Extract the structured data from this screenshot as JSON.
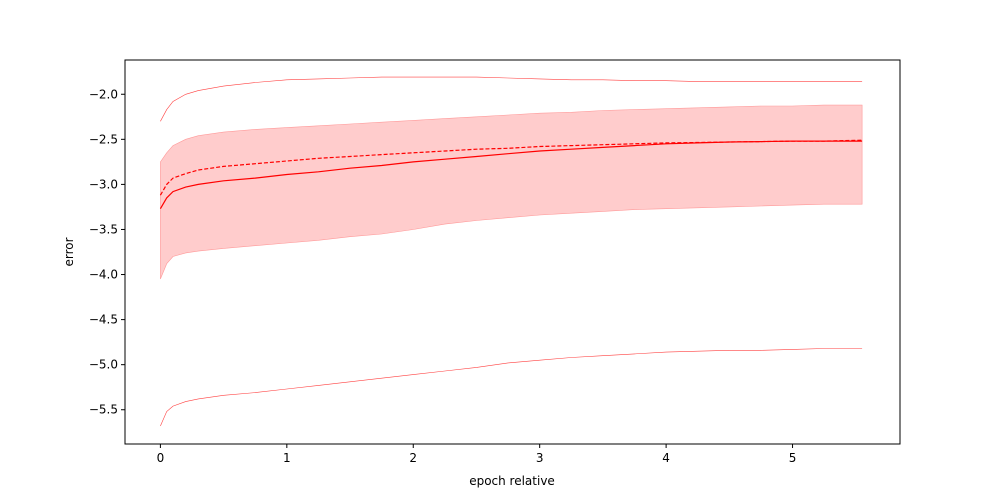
{
  "chart_data": {
    "type": "line",
    "title": "",
    "xlabel": "epoch relative",
    "ylabel": "error",
    "xlim": [
      -0.28,
      5.85
    ],
    "ylim": [
      -5.88,
      -1.62
    ],
    "xticks": [
      0,
      1,
      2,
      3,
      4,
      5
    ],
    "xtick_labels": [
      "0",
      "1",
      "2",
      "3",
      "4",
      "5"
    ],
    "yticks": [
      -2.0,
      -2.5,
      -3.0,
      -3.5,
      -4.0,
      -4.5,
      -5.0,
      -5.5
    ],
    "ytick_labels": [
      "−2.0",
      "−2.5",
      "−3.0",
      "−3.5",
      "−4.0",
      "−4.5",
      "−5.0",
      "−5.5"
    ],
    "grid": false,
    "color": "#ff0000",
    "band_fill": "#ffcccc",
    "series": [
      {
        "role": "mean",
        "style": "solid",
        "x": [
          0,
          0.05,
          0.1,
          0.2,
          0.3,
          0.5,
          0.75,
          1.0,
          1.25,
          1.5,
          1.75,
          2.0,
          2.25,
          2.5,
          2.75,
          3.0,
          3.25,
          3.5,
          3.75,
          4.0,
          4.25,
          4.5,
          4.75,
          5.0,
          5.25,
          5.55
        ],
        "y": [
          -3.27,
          -3.15,
          -3.08,
          -3.03,
          -3.0,
          -2.96,
          -2.93,
          -2.89,
          -2.86,
          -2.82,
          -2.79,
          -2.75,
          -2.72,
          -2.69,
          -2.66,
          -2.63,
          -2.61,
          -2.59,
          -2.57,
          -2.55,
          -2.54,
          -2.53,
          -2.525,
          -2.52,
          -2.52,
          -2.52
        ]
      },
      {
        "role": "median",
        "style": "dashed",
        "x": [
          0,
          0.05,
          0.1,
          0.2,
          0.3,
          0.5,
          0.75,
          1.0,
          1.25,
          1.5,
          1.75,
          2.0,
          2.25,
          2.5,
          2.75,
          3.0,
          3.25,
          3.5,
          3.75,
          4.0,
          4.25,
          4.5,
          4.75,
          5.0,
          5.25,
          5.55
        ],
        "y": [
          -3.12,
          -3.0,
          -2.93,
          -2.88,
          -2.84,
          -2.8,
          -2.77,
          -2.74,
          -2.71,
          -2.69,
          -2.67,
          -2.65,
          -2.63,
          -2.61,
          -2.6,
          -2.58,
          -2.57,
          -2.56,
          -2.55,
          -2.54,
          -2.535,
          -2.53,
          -2.525,
          -2.52,
          -2.52,
          -2.51
        ]
      },
      {
        "role": "max",
        "style": "thin",
        "x": [
          0,
          0.05,
          0.1,
          0.2,
          0.3,
          0.5,
          0.75,
          1.0,
          1.25,
          1.5,
          1.75,
          2.0,
          2.25,
          2.5,
          2.75,
          3.0,
          3.25,
          3.5,
          3.75,
          4.0,
          4.25,
          4.5,
          4.75,
          5.0,
          5.25,
          5.55
        ],
        "y": [
          -2.3,
          -2.17,
          -2.08,
          -2.0,
          -1.96,
          -1.91,
          -1.87,
          -1.84,
          -1.83,
          -1.82,
          -1.81,
          -1.81,
          -1.81,
          -1.81,
          -1.82,
          -1.83,
          -1.84,
          -1.84,
          -1.85,
          -1.85,
          -1.86,
          -1.86,
          -1.86,
          -1.86,
          -1.86,
          -1.86
        ]
      },
      {
        "role": "min",
        "style": "thin",
        "x": [
          0,
          0.05,
          0.1,
          0.2,
          0.3,
          0.5,
          0.75,
          1.0,
          1.25,
          1.5,
          1.75,
          2.0,
          2.25,
          2.5,
          2.75,
          3.0,
          3.25,
          3.5,
          3.75,
          4.0,
          4.25,
          4.5,
          4.75,
          5.0,
          5.25,
          5.55
        ],
        "y": [
          -5.68,
          -5.52,
          -5.46,
          -5.41,
          -5.38,
          -5.34,
          -5.31,
          -5.27,
          -5.23,
          -5.19,
          -5.15,
          -5.11,
          -5.07,
          -5.03,
          -4.98,
          -4.95,
          -4.92,
          -4.9,
          -4.88,
          -4.86,
          -4.85,
          -4.84,
          -4.84,
          -4.83,
          -4.82,
          -4.82
        ]
      }
    ],
    "band": {
      "x": [
        0,
        0.05,
        0.1,
        0.2,
        0.3,
        0.5,
        0.75,
        1.0,
        1.25,
        1.5,
        1.75,
        2.0,
        2.25,
        2.5,
        2.75,
        3.0,
        3.25,
        3.5,
        3.75,
        4.0,
        4.25,
        4.5,
        4.75,
        5.0,
        5.25,
        5.55
      ],
      "upper": [
        -2.75,
        -2.65,
        -2.57,
        -2.5,
        -2.46,
        -2.42,
        -2.39,
        -2.37,
        -2.35,
        -2.33,
        -2.31,
        -2.29,
        -2.27,
        -2.25,
        -2.23,
        -2.21,
        -2.2,
        -2.18,
        -2.17,
        -2.16,
        -2.15,
        -2.14,
        -2.13,
        -2.13,
        -2.12,
        -2.12
      ],
      "lower": [
        -4.05,
        -3.88,
        -3.8,
        -3.76,
        -3.74,
        -3.71,
        -3.68,
        -3.65,
        -3.62,
        -3.58,
        -3.55,
        -3.5,
        -3.44,
        -3.4,
        -3.37,
        -3.34,
        -3.32,
        -3.3,
        -3.28,
        -3.27,
        -3.26,
        -3.25,
        -3.24,
        -3.23,
        -3.22,
        -3.22
      ]
    }
  }
}
